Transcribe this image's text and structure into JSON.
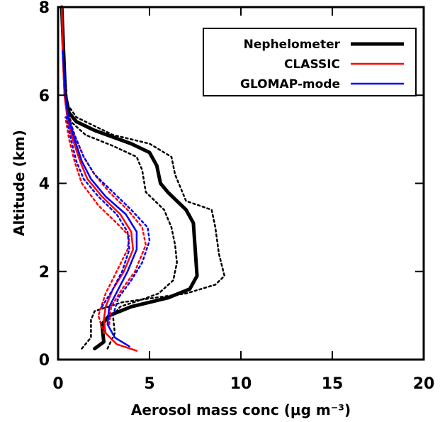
{
  "chart_data": {
    "type": "line",
    "title": "",
    "xlabel": "Aerosol mass conc (μg m⁻³)",
    "ylabel": "Altitude (km)",
    "xlim": [
      0,
      20
    ],
    "ylim": [
      0,
      8
    ],
    "x_ticks": [
      0,
      5,
      10,
      15,
      20
    ],
    "y_ticks": [
      0,
      2,
      4,
      6,
      8
    ],
    "grid": false,
    "legend_position": "top-right",
    "series": [
      {
        "name": "Nephelometer",
        "color": "#000000",
        "style": "solid-thick",
        "points": [
          [
            2.0,
            0.25
          ],
          [
            2.5,
            0.4
          ],
          [
            2.4,
            0.8
          ],
          [
            2.8,
            1.0
          ],
          [
            4.0,
            1.2
          ],
          [
            6.0,
            1.4
          ],
          [
            7.2,
            1.6
          ],
          [
            7.6,
            1.9
          ],
          [
            7.5,
            2.5
          ],
          [
            7.4,
            3.1
          ],
          [
            7.0,
            3.4
          ],
          [
            6.0,
            3.8
          ],
          [
            5.6,
            4.0
          ],
          [
            5.4,
            4.4
          ],
          [
            5.0,
            4.7
          ],
          [
            4.0,
            4.9
          ],
          [
            2.0,
            5.2
          ],
          [
            1.0,
            5.4
          ],
          [
            0.6,
            5.6
          ],
          [
            0.4,
            6.0
          ],
          [
            0.3,
            7.0
          ],
          [
            0.2,
            8.0
          ]
        ]
      },
      {
        "name": "",
        "color": "#000000",
        "style": "dotted",
        "points": [
          [
            1.3,
            0.25
          ],
          [
            1.8,
            0.5
          ],
          [
            1.8,
            0.9
          ],
          [
            2.0,
            1.1
          ],
          [
            3.5,
            1.3
          ],
          [
            7.0,
            1.5
          ],
          [
            8.6,
            1.7
          ],
          [
            9.1,
            1.9
          ],
          [
            8.8,
            2.4
          ],
          [
            8.6,
            3.0
          ],
          [
            8.4,
            3.4
          ],
          [
            7.0,
            3.6
          ],
          [
            6.4,
            4.2
          ],
          [
            6.2,
            4.6
          ],
          [
            5.0,
            4.9
          ],
          [
            3.0,
            5.1
          ],
          [
            1.0,
            5.5
          ],
          [
            0.5,
            5.8
          ],
          [
            0.3,
            7.0
          ]
        ]
      },
      {
        "name": "",
        "color": "#000000",
        "style": "dotted",
        "points": [
          [
            2.7,
            0.25
          ],
          [
            3.1,
            0.6
          ],
          [
            3.0,
            1.0
          ],
          [
            3.4,
            1.2
          ],
          [
            4.5,
            1.35
          ],
          [
            5.5,
            1.5
          ],
          [
            6.3,
            1.8
          ],
          [
            6.5,
            2.2
          ],
          [
            6.4,
            2.6
          ],
          [
            6.2,
            3.0
          ],
          [
            5.8,
            3.4
          ],
          [
            4.8,
            3.8
          ],
          [
            4.6,
            4.3
          ],
          [
            4.3,
            4.6
          ],
          [
            3.0,
            4.85
          ],
          [
            1.5,
            5.1
          ],
          [
            0.7,
            5.4
          ],
          [
            0.4,
            5.8
          ]
        ]
      },
      {
        "name": "CLASSIC",
        "color": "#ff0000",
        "style": "solid",
        "points": [
          [
            4.3,
            0.2
          ],
          [
            3.2,
            0.35
          ],
          [
            2.6,
            0.6
          ],
          [
            2.5,
            0.9
          ],
          [
            2.6,
            1.2
          ],
          [
            3.0,
            1.6
          ],
          [
            3.6,
            2.0
          ],
          [
            4.1,
            2.5
          ],
          [
            4.0,
            2.9
          ],
          [
            3.4,
            3.3
          ],
          [
            2.4,
            3.7
          ],
          [
            1.6,
            4.1
          ],
          [
            1.2,
            4.5
          ],
          [
            0.8,
            5.0
          ],
          [
            0.5,
            5.5
          ],
          [
            0.35,
            6.0
          ],
          [
            0.25,
            7.0
          ],
          [
            0.2,
            8.0
          ]
        ]
      },
      {
        "name": "",
        "color": "#ff0000",
        "style": "dotted",
        "points": [
          [
            2.5,
            0.6
          ],
          [
            2.2,
            1.0
          ],
          [
            2.6,
            1.5
          ],
          [
            3.2,
            2.0
          ],
          [
            3.8,
            2.5
          ],
          [
            3.9,
            2.8
          ],
          [
            3.2,
            3.1
          ],
          [
            2.2,
            3.5
          ],
          [
            1.3,
            4.0
          ],
          [
            0.9,
            4.5
          ],
          [
            0.6,
            5.0
          ],
          [
            0.4,
            5.5
          ]
        ]
      },
      {
        "name": "",
        "color": "#ff0000",
        "style": "dotted",
        "points": [
          [
            2.8,
            0.8
          ],
          [
            2.9,
            1.2
          ],
          [
            3.5,
            1.6
          ],
          [
            4.2,
            2.0
          ],
          [
            4.8,
            2.6
          ],
          [
            4.6,
            3.0
          ],
          [
            3.8,
            3.4
          ],
          [
            2.8,
            3.8
          ],
          [
            2.0,
            4.2
          ],
          [
            1.4,
            4.6
          ],
          [
            0.9,
            5.1
          ],
          [
            0.5,
            5.6
          ]
        ]
      },
      {
        "name": "GLOMAP-mode",
        "color": "#0000ff",
        "style": "solid",
        "points": [
          [
            3.9,
            0.3
          ],
          [
            3.1,
            0.5
          ],
          [
            2.7,
            0.8
          ],
          [
            2.8,
            1.2
          ],
          [
            3.3,
            1.6
          ],
          [
            3.8,
            2.0
          ],
          [
            4.3,
            2.5
          ],
          [
            4.3,
            2.9
          ],
          [
            3.7,
            3.3
          ],
          [
            2.6,
            3.7
          ],
          [
            1.8,
            4.1
          ],
          [
            1.3,
            4.5
          ],
          [
            0.9,
            5.0
          ],
          [
            0.55,
            5.5
          ],
          [
            0.4,
            6.0
          ],
          [
            0.25,
            7.0
          ]
        ]
      },
      {
        "name": "",
        "color": "#0000ff",
        "style": "dotted",
        "points": [
          [
            3.0,
            1.0
          ],
          [
            3.3,
            1.4
          ],
          [
            4.0,
            1.8
          ],
          [
            4.6,
            2.2
          ],
          [
            5.0,
            2.7
          ],
          [
            4.9,
            3.0
          ],
          [
            4.0,
            3.4
          ],
          [
            3.0,
            3.8
          ],
          [
            2.0,
            4.2
          ],
          [
            1.4,
            4.6
          ],
          [
            0.9,
            5.1
          ],
          [
            0.5,
            5.6
          ]
        ]
      },
      {
        "name": "",
        "color": "#0000ff",
        "style": "dotted",
        "points": [
          [
            2.4,
            1.2
          ],
          [
            3.0,
            1.6
          ],
          [
            3.5,
            2.0
          ],
          [
            3.9,
            2.5
          ],
          [
            3.8,
            2.9
          ],
          [
            3.2,
            3.3
          ],
          [
            2.2,
            3.7
          ],
          [
            1.4,
            4.1
          ],
          [
            1.0,
            4.5
          ],
          [
            0.7,
            5.0
          ],
          [
            0.45,
            5.5
          ]
        ]
      }
    ]
  }
}
